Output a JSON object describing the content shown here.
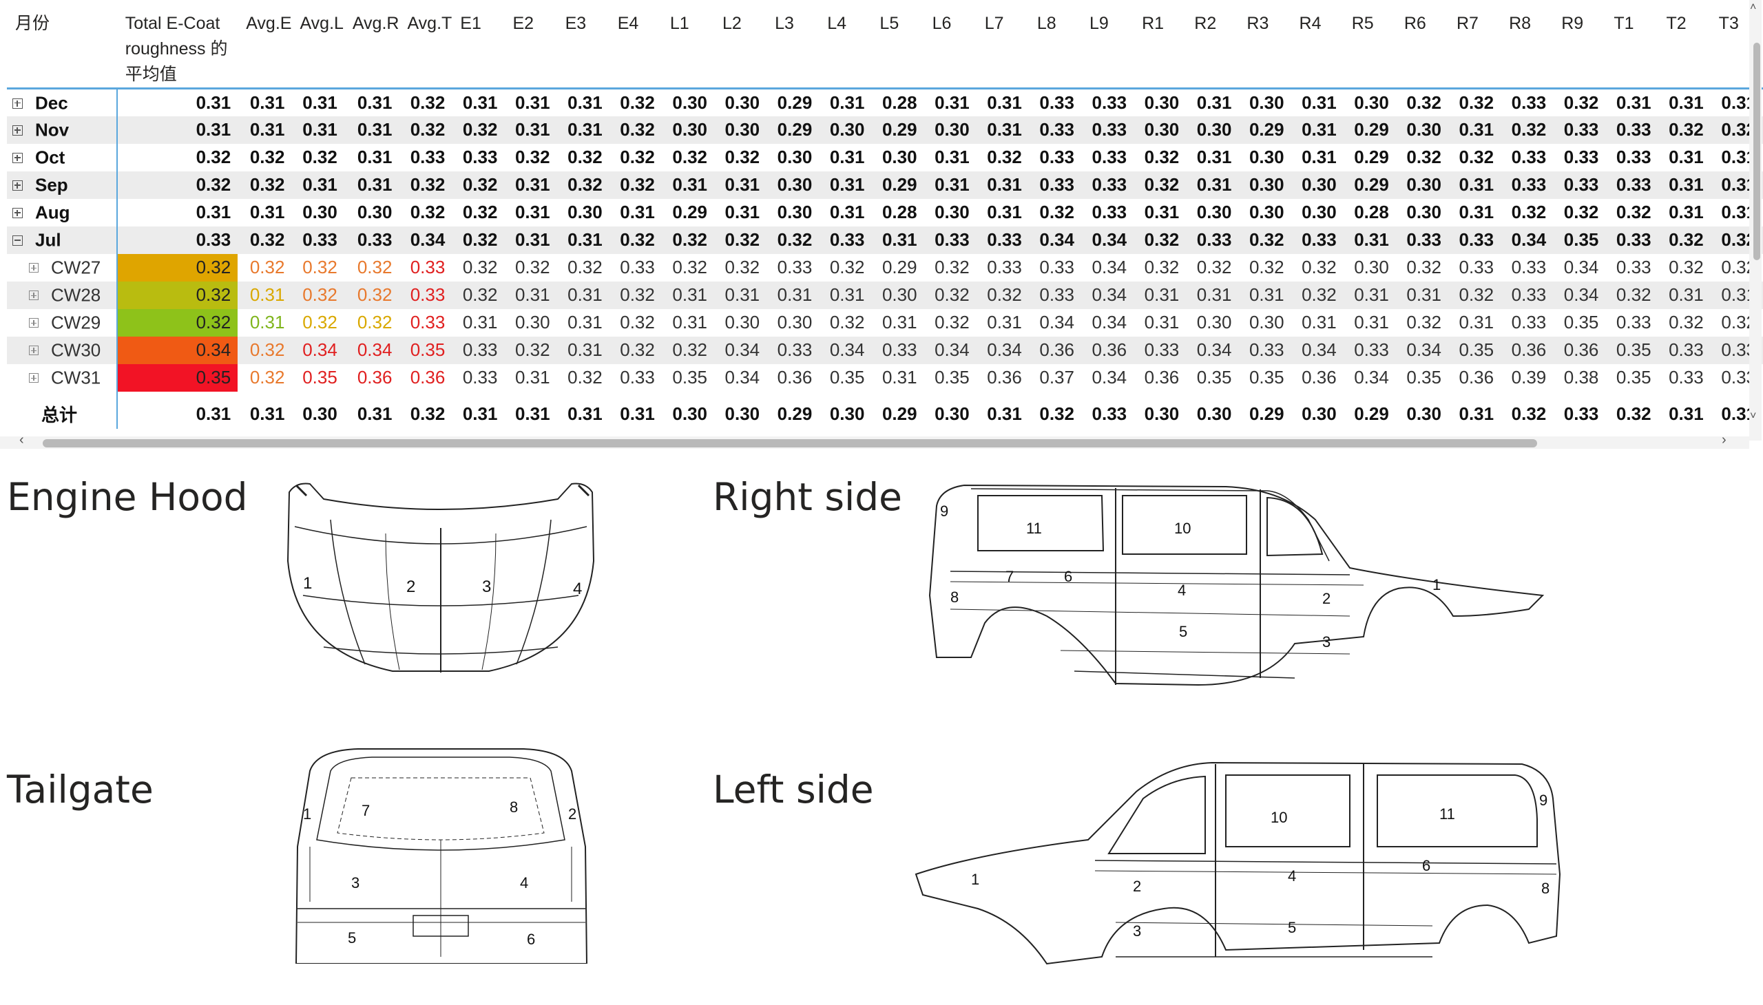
{
  "table": {
    "headers": [
      "月份",
      "Total E-Coat roughness 的平均值",
      "Avg.E",
      "Avg.L",
      "Avg.R",
      "Avg.T",
      "E1",
      "E2",
      "E3",
      "E4",
      "L1",
      "L2",
      "L3",
      "L4",
      "L5",
      "L6",
      "L7",
      "L8",
      "L9",
      "R1",
      "R2",
      "R3",
      "R4",
      "R5",
      "R6",
      "R7",
      "R8",
      "R9",
      "T1",
      "T2",
      "T3"
    ],
    "rows": [
      {
        "label": "Dec",
        "expand": "plus",
        "type": "month",
        "values": [
          "0.31",
          "0.31",
          "0.31",
          "0.31",
          "0.32",
          "0.31",
          "0.31",
          "0.31",
          "0.32",
          "0.30",
          "0.30",
          "0.29",
          "0.31",
          "0.28",
          "0.31",
          "0.31",
          "0.33",
          "0.33",
          "0.30",
          "0.31",
          "0.30",
          "0.31",
          "0.30",
          "0.32",
          "0.32",
          "0.33",
          "0.32",
          "0.31",
          "0.31",
          "0.31"
        ]
      },
      {
        "label": "Nov",
        "expand": "plus",
        "type": "month",
        "values": [
          "0.31",
          "0.31",
          "0.31",
          "0.31",
          "0.32",
          "0.32",
          "0.31",
          "0.31",
          "0.32",
          "0.30",
          "0.30",
          "0.29",
          "0.30",
          "0.29",
          "0.30",
          "0.31",
          "0.33",
          "0.33",
          "0.30",
          "0.30",
          "0.29",
          "0.31",
          "0.29",
          "0.30",
          "0.31",
          "0.32",
          "0.33",
          "0.33",
          "0.32",
          "0.32"
        ]
      },
      {
        "label": "Oct",
        "expand": "plus",
        "type": "month",
        "values": [
          "0.32",
          "0.32",
          "0.32",
          "0.31",
          "0.33",
          "0.33",
          "0.32",
          "0.32",
          "0.32",
          "0.32",
          "0.32",
          "0.30",
          "0.31",
          "0.30",
          "0.31",
          "0.32",
          "0.33",
          "0.33",
          "0.32",
          "0.31",
          "0.30",
          "0.31",
          "0.29",
          "0.32",
          "0.32",
          "0.33",
          "0.33",
          "0.33",
          "0.31",
          "0.31"
        ]
      },
      {
        "label": "Sep",
        "expand": "plus",
        "type": "month",
        "values": [
          "0.32",
          "0.32",
          "0.31",
          "0.31",
          "0.32",
          "0.32",
          "0.31",
          "0.32",
          "0.32",
          "0.31",
          "0.31",
          "0.30",
          "0.31",
          "0.29",
          "0.31",
          "0.31",
          "0.33",
          "0.33",
          "0.32",
          "0.31",
          "0.30",
          "0.30",
          "0.29",
          "0.30",
          "0.31",
          "0.33",
          "0.33",
          "0.33",
          "0.31",
          "0.31"
        ]
      },
      {
        "label": "Aug",
        "expand": "plus",
        "type": "month",
        "values": [
          "0.31",
          "0.31",
          "0.30",
          "0.30",
          "0.32",
          "0.32",
          "0.31",
          "0.30",
          "0.31",
          "0.29",
          "0.31",
          "0.30",
          "0.31",
          "0.28",
          "0.30",
          "0.31",
          "0.32",
          "0.33",
          "0.31",
          "0.30",
          "0.30",
          "0.30",
          "0.28",
          "0.30",
          "0.31",
          "0.32",
          "0.32",
          "0.32",
          "0.31",
          "0.31"
        ]
      },
      {
        "label": "Jul",
        "expand": "minus",
        "type": "month",
        "values": [
          "0.33",
          "0.32",
          "0.33",
          "0.33",
          "0.34",
          "0.32",
          "0.31",
          "0.31",
          "0.32",
          "0.32",
          "0.32",
          "0.32",
          "0.33",
          "0.31",
          "0.33",
          "0.33",
          "0.34",
          "0.34",
          "0.32",
          "0.33",
          "0.32",
          "0.33",
          "0.31",
          "0.33",
          "0.33",
          "0.34",
          "0.35",
          "0.33",
          "0.32",
          "0.32"
        ]
      },
      {
        "label": "CW27",
        "expand": "plus",
        "type": "week",
        "values": [
          "0.32",
          "0.32",
          "0.32",
          "0.32",
          "0.33",
          "0.32",
          "0.32",
          "0.32",
          "0.33",
          "0.32",
          "0.32",
          "0.33",
          "0.32",
          "0.29",
          "0.32",
          "0.33",
          "0.33",
          "0.34",
          "0.32",
          "0.32",
          "0.32",
          "0.32",
          "0.30",
          "0.32",
          "0.33",
          "0.33",
          "0.34",
          "0.33",
          "0.32",
          "0.32"
        ],
        "heat": "#dfa500",
        "colors": [
          "#e8792d",
          "#e8792d",
          "#e8792d",
          "#e02020"
        ]
      },
      {
        "label": "CW28",
        "expand": "plus",
        "type": "week",
        "values": [
          "0.32",
          "0.31",
          "0.32",
          "0.32",
          "0.33",
          "0.32",
          "0.31",
          "0.31",
          "0.32",
          "0.31",
          "0.31",
          "0.31",
          "0.31",
          "0.30",
          "0.32",
          "0.32",
          "0.33",
          "0.34",
          "0.31",
          "0.31",
          "0.31",
          "0.32",
          "0.31",
          "0.31",
          "0.32",
          "0.33",
          "0.34",
          "0.32",
          "0.31",
          "0.31"
        ],
        "heat": "#b9bc10",
        "colors": [
          "#d9a800",
          "#e8792d",
          "#e8792d",
          "#e02020"
        ]
      },
      {
        "label": "CW29",
        "expand": "plus",
        "type": "week",
        "values": [
          "0.32",
          "0.31",
          "0.32",
          "0.32",
          "0.33",
          "0.31",
          "0.30",
          "0.31",
          "0.32",
          "0.31",
          "0.30",
          "0.30",
          "0.32",
          "0.31",
          "0.32",
          "0.31",
          "0.34",
          "0.34",
          "0.31",
          "0.30",
          "0.30",
          "0.31",
          "0.31",
          "0.32",
          "0.31",
          "0.33",
          "0.35",
          "0.33",
          "0.32",
          "0.32"
        ],
        "heat": "#8ec21a",
        "colors": [
          "#7fb51c",
          "#d9a800",
          "#d9a800",
          "#e02020"
        ]
      },
      {
        "label": "CW30",
        "expand": "plus",
        "type": "week",
        "values": [
          "0.34",
          "0.32",
          "0.34",
          "0.34",
          "0.35",
          "0.33",
          "0.32",
          "0.31",
          "0.32",
          "0.32",
          "0.34",
          "0.33",
          "0.34",
          "0.33",
          "0.34",
          "0.34",
          "0.36",
          "0.36",
          "0.33",
          "0.34",
          "0.33",
          "0.34",
          "0.33",
          "0.34",
          "0.35",
          "0.36",
          "0.36",
          "0.35",
          "0.33",
          "0.33"
        ],
        "heat": "#f05a14",
        "colors": [
          "#e8792d",
          "#e02020",
          "#e02020",
          "#e02020"
        ]
      },
      {
        "label": "CW31",
        "expand": "plus",
        "type": "week",
        "values": [
          "0.35",
          "0.32",
          "0.35",
          "0.36",
          "0.36",
          "0.33",
          "0.31",
          "0.32",
          "0.33",
          "0.35",
          "0.34",
          "0.36",
          "0.35",
          "0.31",
          "0.35",
          "0.36",
          "0.37",
          "0.34",
          "0.36",
          "0.35",
          "0.35",
          "0.36",
          "0.34",
          "0.35",
          "0.36",
          "0.39",
          "0.38",
          "0.35",
          "0.33",
          "0.33"
        ],
        "heat": "#f21325",
        "colors": [
          "#e8792d",
          "#e02020",
          "#e02020",
          "#e02020"
        ]
      }
    ],
    "total": {
      "label": "总计",
      "values": [
        "0.31",
        "0.31",
        "0.30",
        "0.31",
        "0.32",
        "0.31",
        "0.31",
        "0.31",
        "0.31",
        "0.30",
        "0.30",
        "0.29",
        "0.30",
        "0.29",
        "0.30",
        "0.31",
        "0.32",
        "0.33",
        "0.30",
        "0.30",
        "0.29",
        "0.30",
        "0.29",
        "0.30",
        "0.31",
        "0.32",
        "0.33",
        "0.32",
        "0.31",
        "0.31"
      ]
    }
  },
  "panels": {
    "engine_hood": {
      "title": "Engine Hood",
      "zones": [
        "1",
        "2",
        "3",
        "4"
      ]
    },
    "right_side": {
      "title": "Right side",
      "zones": [
        "9",
        "11",
        "10",
        "7",
        "6",
        "8",
        "4",
        "2",
        "1",
        "5",
        "3"
      ]
    },
    "tailgate": {
      "title": "Tailgate",
      "zones": [
        "1",
        "7",
        "8",
        "2",
        "3",
        "4",
        "5",
        "6"
      ]
    },
    "left_side": {
      "title": "Left side",
      "zones": [
        "10",
        "11",
        "9",
        "6",
        "1",
        "2",
        "4",
        "8",
        "3",
        "5"
      ]
    }
  },
  "scroll": {
    "left_arrow": "‹",
    "right_arrow": "›",
    "up_arrow": "˄",
    "down_arrow": "˅"
  }
}
